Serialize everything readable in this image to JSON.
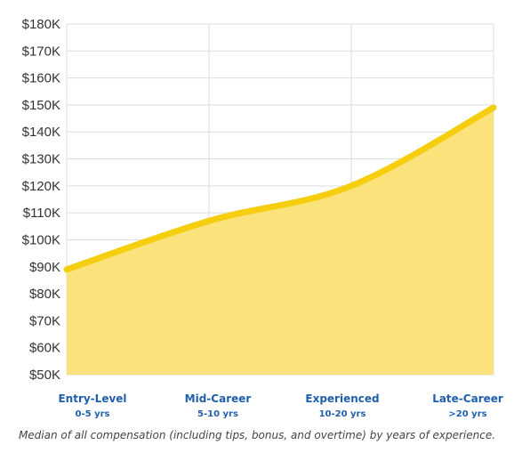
{
  "chart_data": {
    "type": "area",
    "categories": [
      "Entry-Level",
      "Mid-Career",
      "Experienced",
      "Late-Career"
    ],
    "category_sublabels": [
      "0-5 yrs",
      "5-10 yrs",
      "10-20 yrs",
      ">20 yrs"
    ],
    "values": [
      89000,
      107000,
      120000,
      149000
    ],
    "ylim": [
      50000,
      180000
    ],
    "yticks": [
      50000,
      60000,
      70000,
      80000,
      90000,
      100000,
      110000,
      120000,
      130000,
      140000,
      150000,
      160000,
      170000,
      180000
    ],
    "ytick_labels": [
      "$50K",
      "$60K",
      "$70K",
      "$80K",
      "$90K",
      "$100K",
      "$110K",
      "$120K",
      "$130K",
      "$140K",
      "$150K",
      "$160K",
      "$170K",
      "$180K"
    ],
    "grid": true,
    "caption": "Median of all compensation (including tips, bonus, and overtime) by years of experience."
  },
  "colors": {
    "line": "#f5cf0f",
    "fill": "#fbe27a",
    "category_label": "#1f5fae",
    "grid": "#dddddd",
    "tick_text": "#333333"
  }
}
